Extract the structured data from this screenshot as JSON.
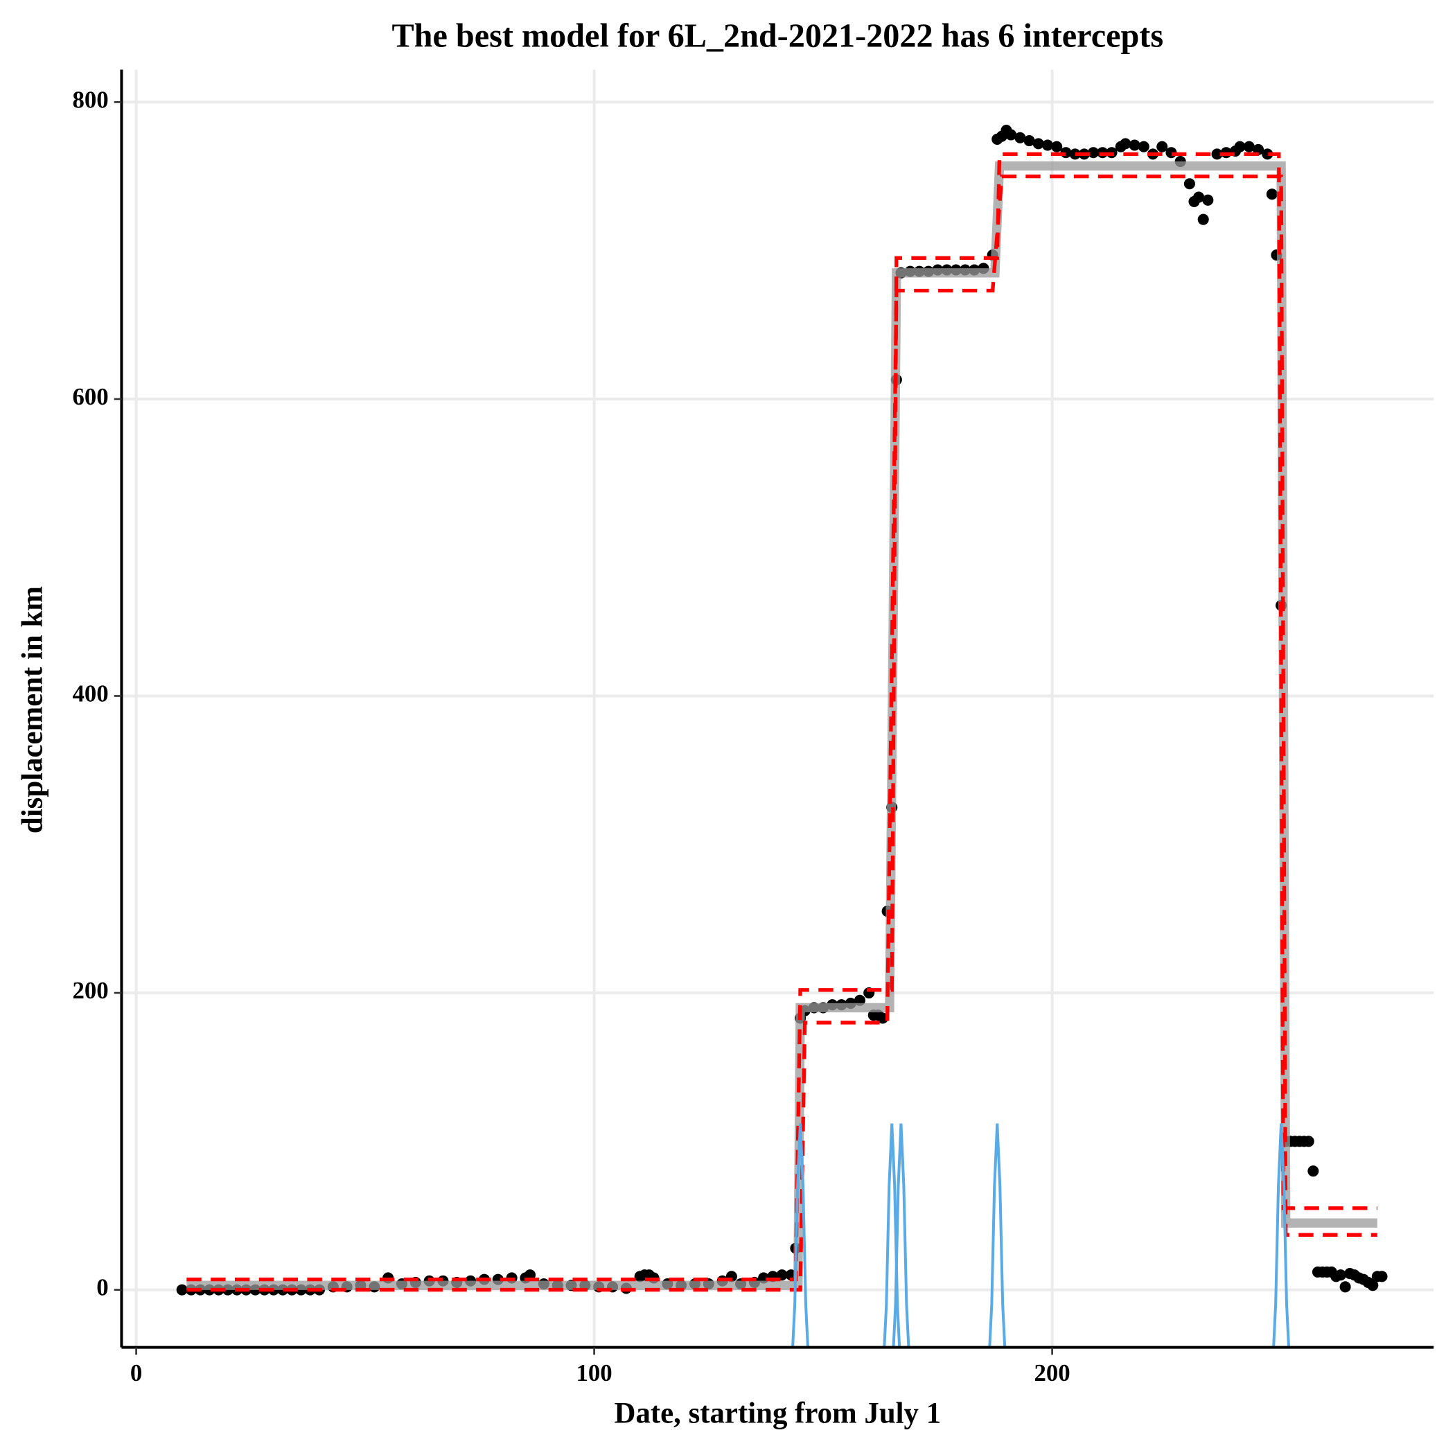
{
  "chart_data": {
    "type": "scatter",
    "title": "The best model for 6L_2nd-2021-2022 has 6 intercepts",
    "x_label": "Date, starting from July 1",
    "y_label": "displacement in km",
    "xlim": [
      -3.2,
      283.3
    ],
    "ylim": [
      -38.75,
      821.9
    ],
    "xticks": [
      0,
      100,
      200
    ],
    "yticks": [
      0,
      200,
      400,
      600,
      800
    ],
    "grid": true,
    "point_color": "#000000",
    "x": [
      10,
      12,
      14,
      16,
      18,
      20,
      22,
      24,
      26,
      28,
      30,
      32,
      34,
      36,
      38,
      40,
      43,
      46,
      49,
      52,
      55,
      58,
      61,
      64,
      67,
      70,
      73,
      76,
      79,
      82,
      85,
      86,
      89,
      92,
      95,
      98,
      101,
      104,
      107,
      110,
      111,
      112,
      113,
      116,
      119,
      122,
      125,
      128,
      130,
      132,
      135,
      137,
      139,
      141,
      143,
      144,
      145,
      146,
      148,
      150,
      152,
      154,
      156,
      158,
      160,
      161,
      162,
      163,
      164,
      165,
      166,
      167,
      169,
      171,
      173,
      175,
      177,
      179,
      181,
      183,
      185,
      187,
      188,
      189,
      190,
      191,
      193,
      195,
      197,
      199,
      201,
      203,
      205,
      207,
      209,
      211,
      213,
      215,
      216,
      218,
      220,
      222,
      224,
      226,
      228,
      230,
      231,
      232,
      233,
      234,
      236,
      238,
      240,
      241,
      243,
      245,
      247,
      248,
      249,
      250,
      251,
      252,
      253,
      254,
      255,
      256,
      257,
      258,
      259,
      260,
      261,
      262,
      263,
      264,
      265,
      266,
      267,
      268,
      269,
      270,
      271,
      272
    ],
    "values": [
      0,
      0,
      0,
      0,
      0,
      0,
      0,
      0,
      0,
      0,
      0,
      0,
      0,
      0,
      0,
      0,
      2,
      2,
      3,
      2,
      8,
      4,
      5,
      6,
      6,
      5,
      6,
      7,
      7,
      8,
      8,
      10,
      4,
      3,
      3,
      3,
      2,
      2,
      1,
      9,
      10,
      10,
      8,
      4,
      3,
      4,
      4,
      6,
      9,
      4,
      5,
      8,
      9,
      10,
      10,
      28,
      183,
      188,
      190,
      190,
      192,
      192,
      193,
      195,
      200,
      185,
      185,
      183,
      255,
      325,
      613,
      685,
      686,
      686,
      686,
      687,
      687,
      687,
      687,
      687,
      688,
      697,
      775,
      777,
      781,
      778,
      776,
      774,
      772,
      771,
      770,
      766,
      765,
      765,
      766,
      766,
      766,
      770,
      772,
      771,
      770,
      765,
      770,
      766,
      760,
      745,
      733,
      736,
      721,
      734,
      765,
      766,
      767,
      770,
      770,
      768,
      765,
      738,
      697,
      461,
      100,
      100,
      100,
      100,
      100,
      100,
      80,
      12,
      12,
      12,
      12,
      9,
      10,
      2,
      11,
      10,
      8,
      7,
      5,
      3,
      9,
      9
    ],
    "lines": [
      {
        "color": "#9a9a9a",
        "dashed": false,
        "x": [
          11,
          144.5,
          145,
          164.5,
          166,
          187.5,
          188.5,
          250,
          251,
          271
        ],
        "values": [
          3,
          3,
          190,
          190,
          685,
          685,
          757,
          757,
          45,
          45
        ]
      },
      {
        "color": "#ff0000",
        "dashed": true,
        "x": [
          11,
          144,
          145,
          165,
          166,
          188,
          188.5,
          249.5,
          250.5,
          271
        ],
        "values": [
          7,
          7,
          202,
          202,
          695,
          695,
          765,
          765,
          55,
          55
        ]
      },
      {
        "color": "#ff0000",
        "dashed": true,
        "x": [
          11,
          145,
          146,
          164,
          166,
          187,
          189,
          250,
          251,
          271
        ],
        "values": [
          0,
          0,
          180,
          180,
          673,
          673,
          750,
          750,
          37,
          37
        ]
      },
      {
        "color": "#5aaae6",
        "dashed": false,
        "x": [
          143,
          143.8,
          144.4,
          145,
          145.6,
          146.2,
          147
        ],
        "values": [
          -60,
          -10,
          70,
          112,
          70,
          -10,
          -60
        ]
      },
      {
        "color": "#5aaae6",
        "dashed": false,
        "x": [
          163,
          163.8,
          164.4,
          165,
          165.6,
          166.2,
          167
        ],
        "values": [
          -60,
          -10,
          70,
          112,
          70,
          -10,
          -60
        ]
      },
      {
        "color": "#5aaae6",
        "dashed": false,
        "x": [
          165,
          165.8,
          166.4,
          167,
          167.6,
          168.2,
          169
        ],
        "values": [
          -60,
          -10,
          70,
          112,
          70,
          -10,
          -60
        ]
      },
      {
        "color": "#5aaae6",
        "dashed": false,
        "x": [
          186,
          186.8,
          187.4,
          188,
          188.6,
          189.2,
          190
        ],
        "values": [
          -60,
          -10,
          70,
          112,
          70,
          -10,
          -60
        ]
      },
      {
        "color": "#5aaae6",
        "dashed": false,
        "x": [
          248,
          248.8,
          249.4,
          250,
          250.6,
          251.2,
          252
        ],
        "values": [
          -60,
          -10,
          70,
          112,
          70,
          -10,
          -60
        ]
      }
    ]
  }
}
